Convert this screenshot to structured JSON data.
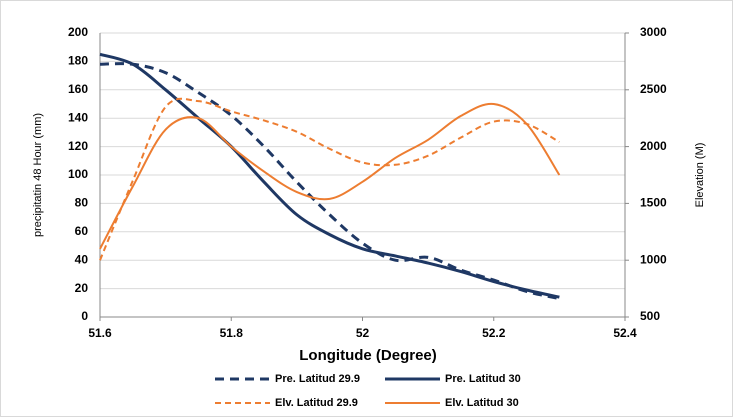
{
  "chart_data": {
    "type": "line",
    "x_label": "Longitude (Degree)",
    "y_label": "precipitatin 48 Hour (mm)",
    "y2_label": "Elevation (M)",
    "x": [
      51.6,
      51.65,
      51.7,
      51.75,
      51.8,
      51.85,
      51.9,
      51.95,
      52,
      52.05,
      52.1,
      52.15,
      52.2,
      52.25,
      52.3
    ],
    "series": [
      {
        "name": "Pre.  Latitud 29.9",
        "color": "#1f3864",
        "dashed": true,
        "axis": "y",
        "values": [
          178,
          178,
          172,
          158,
          142,
          120,
          95,
          72,
          52,
          40,
          42,
          33,
          26,
          18,
          13
        ]
      },
      {
        "name": "Pre.  Latitud 30",
        "color": "#1f3864",
        "dashed": false,
        "axis": "y",
        "values": [
          185,
          178,
          160,
          140,
          120,
          95,
          72,
          58,
          48,
          43,
          38,
          32,
          25,
          19,
          14
        ]
      },
      {
        "name": "Elv.  Latitud 29.9",
        "color": "#ed7d31",
        "dashed": true,
        "axis": "y2",
        "values": [
          1000,
          1700,
          2350,
          2400,
          2310,
          2230,
          2130,
          1980,
          1860,
          1840,
          1920,
          2080,
          2220,
          2200,
          2040
        ]
      },
      {
        "name": "Elv.  Latitud 30",
        "color": "#ed7d31",
        "dashed": false,
        "axis": "y2",
        "values": [
          1100,
          1650,
          2150,
          2250,
          2000,
          1780,
          1600,
          1540,
          1690,
          1900,
          2060,
          2270,
          2375,
          2200,
          1750
        ]
      }
    ],
    "xlim": [
      51.6,
      52.4
    ],
    "xticks": [
      51.6,
      51.8,
      52,
      52.2,
      52.4
    ],
    "ylim": [
      0,
      200
    ],
    "yticks": [
      0,
      20,
      40,
      60,
      80,
      100,
      120,
      140,
      160,
      180,
      200
    ],
    "y2lim": [
      500,
      3000
    ],
    "y2ticks": [
      500,
      1000,
      1500,
      2000,
      2500,
      3000
    ],
    "grid": true
  }
}
